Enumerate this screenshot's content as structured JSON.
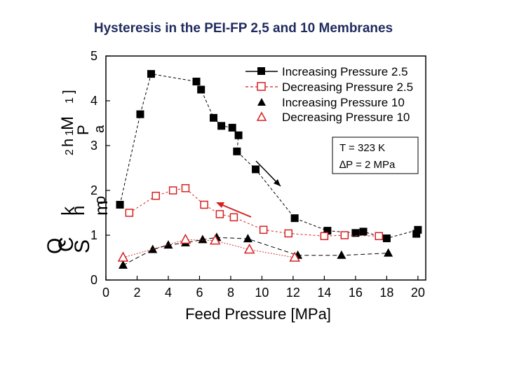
{
  "title": "Hysteresis in the PEI-FP 2,5 and 10 Membranes",
  "chart_data": {
    "type": "scatter",
    "title": "Hysteresis in the PEI-FP 2,5 and 10 Membranes",
    "xlabel": "Feed Pressure [MPa]",
    "ylabel_fragments": [
      "Q",
      "C",
      "S",
      "k",
      "h",
      "m",
      "o",
      "2",
      "h",
      "1",
      "M",
      "P",
      "a",
      "1",
      "]"
    ],
    "xlim": [
      0,
      20.5
    ],
    "ylim": [
      0,
      5
    ],
    "xticks": [
      0,
      2,
      4,
      6,
      8,
      10,
      12,
      14,
      16,
      18,
      20
    ],
    "yticks": [
      0,
      1,
      2,
      3,
      4,
      5
    ],
    "legend_position": "top-right",
    "series": [
      {
        "name": "Increasing Pressure 2.5",
        "marker": "filled-square",
        "line": "dashed",
        "points": [
          [
            0.9,
            1.68
          ],
          [
            2.2,
            3.7
          ],
          [
            2.9,
            4.6
          ],
          [
            5.8,
            4.43
          ],
          [
            6.1,
            4.25
          ],
          [
            6.9,
            3.62
          ],
          [
            7.4,
            3.44
          ],
          [
            8.1,
            3.4
          ],
          [
            8.5,
            3.23
          ],
          [
            8.4,
            2.87
          ],
          [
            9.6,
            2.47
          ],
          [
            12.1,
            1.38
          ],
          [
            14.2,
            1.1
          ],
          [
            16.0,
            1.05
          ],
          [
            16.5,
            1.08
          ],
          [
            18.0,
            0.93
          ],
          [
            20.0,
            1.12
          ],
          [
            19.9,
            1.03
          ]
        ]
      },
      {
        "name": "Decreasing Pressure 2.5",
        "marker": "open-square",
        "line": "dashed",
        "points": [
          [
            1.5,
            1.5
          ],
          [
            3.2,
            1.88
          ],
          [
            4.3,
            2.0
          ],
          [
            5.1,
            2.05
          ],
          [
            6.3,
            1.68
          ],
          [
            7.3,
            1.47
          ],
          [
            8.2,
            1.4
          ],
          [
            10.1,
            1.12
          ],
          [
            11.7,
            1.04
          ],
          [
            14.0,
            0.98
          ],
          [
            15.3,
            1.0
          ],
          [
            17.5,
            0.98
          ]
        ]
      },
      {
        "name": "Increasing Pressure 10",
        "marker": "filled-triangle",
        "line": "dashed",
        "points": [
          [
            1.1,
            0.33
          ],
          [
            3.0,
            0.68
          ],
          [
            4.0,
            0.78
          ],
          [
            5.1,
            0.83
          ],
          [
            6.2,
            0.9
          ],
          [
            7.1,
            0.95
          ],
          [
            9.1,
            0.92
          ],
          [
            12.3,
            0.55
          ],
          [
            15.1,
            0.55
          ],
          [
            18.1,
            0.6
          ]
        ]
      },
      {
        "name": "Decreasing Pressure 10",
        "marker": "open-triangle",
        "line": "dashed",
        "points": [
          [
            1.1,
            0.5
          ],
          [
            5.1,
            0.9
          ],
          [
            7.0,
            0.88
          ],
          [
            9.2,
            0.68
          ],
          [
            12.1,
            0.5
          ]
        ]
      }
    ],
    "annotations": {
      "temperature": "T = 323 K",
      "pressure_drop": "∆P = 2 MPa"
    }
  }
}
